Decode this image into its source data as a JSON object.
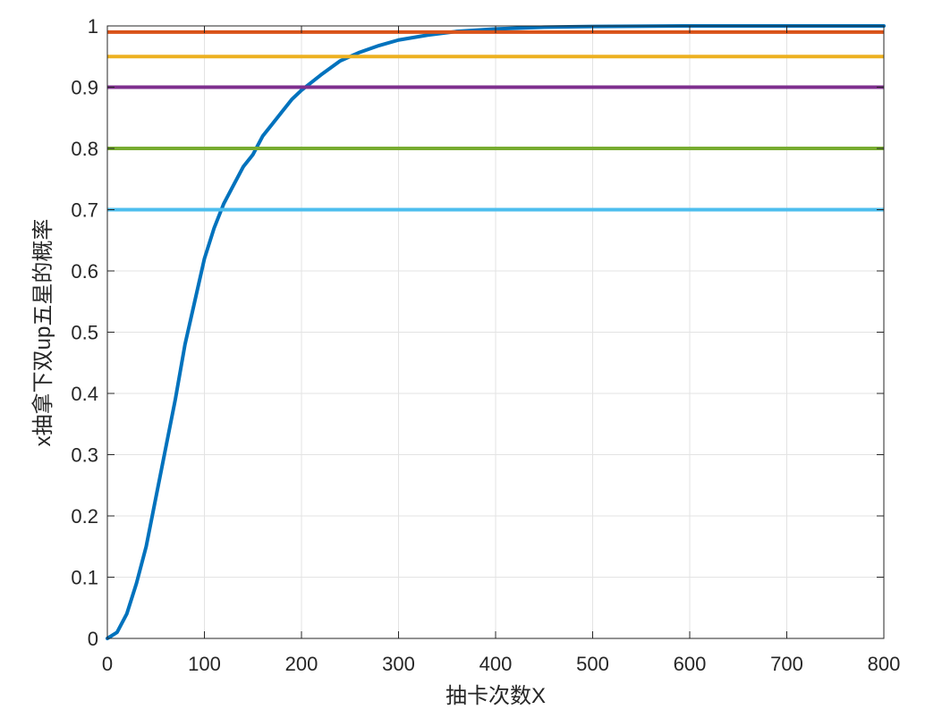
{
  "chart_data": {
    "type": "line",
    "xlabel": "抽卡次数X",
    "ylabel": "x抽拿下双up五星的概率",
    "xlim": [
      0,
      800
    ],
    "ylim": [
      0,
      1
    ],
    "grid": true,
    "x_ticks": [
      0,
      100,
      200,
      300,
      400,
      500,
      600,
      700,
      800
    ],
    "y_ticks": [
      0,
      0.1,
      0.2,
      0.3,
      0.4,
      0.5,
      0.6,
      0.7,
      0.8,
      0.9,
      1
    ],
    "x_tick_labels": [
      "0",
      "100",
      "200",
      "300",
      "400",
      "500",
      "600",
      "700",
      "800"
    ],
    "y_tick_labels": [
      "0",
      "0.1",
      "0.2",
      "0.3",
      "0.4",
      "0.5",
      "0.6",
      "0.7",
      "0.8",
      "0.9",
      "1"
    ],
    "series": [
      {
        "kind": "curve",
        "color": "#0072BD",
        "points": [
          [
            0,
            0
          ],
          [
            10,
            0.01
          ],
          [
            20,
            0.04
          ],
          [
            30,
            0.09
          ],
          [
            40,
            0.15
          ],
          [
            50,
            0.23
          ],
          [
            60,
            0.31
          ],
          [
            70,
            0.39
          ],
          [
            80,
            0.48
          ],
          [
            90,
            0.55
          ],
          [
            100,
            0.62
          ],
          [
            110,
            0.67
          ],
          [
            120,
            0.71
          ],
          [
            130,
            0.74
          ],
          [
            140,
            0.77
          ],
          [
            150,
            0.79
          ],
          [
            160,
            0.82
          ],
          [
            170,
            0.84
          ],
          [
            180,
            0.86
          ],
          [
            190,
            0.88
          ],
          [
            200,
            0.895
          ],
          [
            220,
            0.92
          ],
          [
            240,
            0.943
          ],
          [
            260,
            0.957
          ],
          [
            280,
            0.968
          ],
          [
            300,
            0.977
          ],
          [
            330,
            0.985
          ],
          [
            360,
            0.991
          ],
          [
            400,
            0.995
          ],
          [
            450,
            0.998
          ],
          [
            500,
            0.999
          ],
          [
            600,
            1.0
          ],
          [
            700,
            1.0
          ],
          [
            800,
            1.0
          ]
        ]
      },
      {
        "kind": "hline",
        "y": 0.99,
        "color": "#D95319"
      },
      {
        "kind": "hline",
        "y": 0.95,
        "color": "#EDB120"
      },
      {
        "kind": "hline",
        "y": 0.9,
        "color": "#7E2F8E"
      },
      {
        "kind": "hline",
        "y": 0.8,
        "color": "#77AC30"
      },
      {
        "kind": "hline",
        "y": 0.7,
        "color": "#4DBEEE"
      }
    ]
  }
}
